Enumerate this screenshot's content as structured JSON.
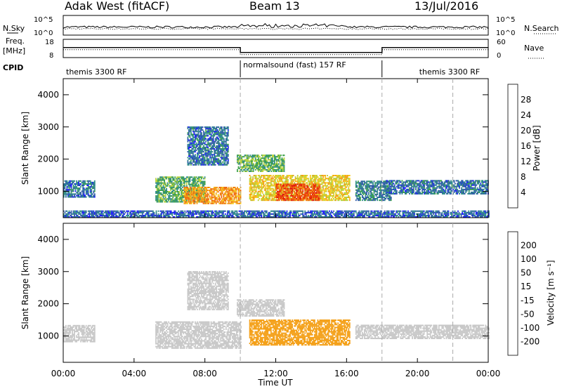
{
  "header": {
    "station": "Adak West (fitACF)",
    "beam": "Beam 13",
    "date": "13/Jul/2016"
  },
  "noise_panel": {
    "left_label": "N.Sky",
    "right_label": "N.Search",
    "tick_top": "10^5",
    "tick_bottom": "10^0"
  },
  "freq_panel": {
    "left_label_1": "Freq.",
    "left_label_2": "[MHz]",
    "right_label": "Nave",
    "left_ticks": [
      "18",
      "8"
    ],
    "right_ticks": [
      "60",
      "0"
    ]
  },
  "cpid": {
    "label": "CPID",
    "segments": [
      {
        "text": "themis 3300 RF",
        "start": 0,
        "end": 10
      },
      {
        "text": "normalsound (fast) 157 RF",
        "start": 10,
        "end": 18
      },
      {
        "text": "themis 3300 RF",
        "start": 18,
        "end": 24
      }
    ]
  },
  "axes": {
    "xlabel": "Time UT",
    "ylabel": "Slant Range [km]",
    "x_ticks": [
      "00:00",
      "04:00",
      "08:00",
      "12:00",
      "16:00",
      "20:00",
      "00:00"
    ],
    "y_ticks": [
      "1000",
      "2000",
      "3000",
      "4000"
    ]
  },
  "power_colorbar": {
    "label": "Power [dB]",
    "ticks": [
      "4",
      "8",
      "12",
      "16",
      "20",
      "24",
      "28"
    ],
    "colors": [
      "#1a1aff",
      "#2e5aa8",
      "#2e8a8a",
      "#3aa04a",
      "#b6d23a",
      "#f6cc1e",
      "#f39a18",
      "#ef6a10",
      "#ea3a0c",
      "#e01010"
    ]
  },
  "velocity_colorbar": {
    "label": "Velocity [m s⁻¹]",
    "ticks": [
      "200",
      "100",
      "50",
      "15",
      "-15",
      "-50",
      "-100",
      "-200"
    ],
    "colors": [
      "#2233cc",
      "#2e5aa8",
      "#2e8a8a",
      "#4ab04a",
      "#8ad24a",
      "#c8c8c8",
      "#f6cc1e",
      "#f4a018",
      "#ef6a10",
      "#ea3a0c",
      "#e01010"
    ]
  },
  "chart_data": {
    "type": "heatmap",
    "title": "Adak West (fitACF)  Beam 13  13/Jul/2016",
    "xlabel": "Time UT",
    "ylabel": "Slant Range [km]",
    "xlim": [
      0,
      24
    ],
    "ylim": [
      180,
      4500
    ],
    "grid": false,
    "mode_change_markers_hours": [
      10,
      18,
      22
    ],
    "frequency_mhz": [
      {
        "start": 0,
        "end": 10,
        "value": 13.5
      },
      {
        "start": 10,
        "end": 18,
        "value": 10.8
      },
      {
        "start": 18,
        "end": 24,
        "value": 13.5
      }
    ],
    "power_db_regions": [
      {
        "t_start": 0.0,
        "t_end": 1.8,
        "r_start": 800,
        "r_end": 1300,
        "power": 6
      },
      {
        "t_start": 5.2,
        "t_end": 8.0,
        "r_start": 650,
        "r_end": 1450,
        "power": 10
      },
      {
        "t_start": 6.8,
        "t_end": 10.0,
        "r_start": 600,
        "r_end": 1100,
        "power": 20
      },
      {
        "t_start": 7.0,
        "t_end": 9.3,
        "r_start": 1800,
        "r_end": 3000,
        "power": 6
      },
      {
        "t_start": 9.8,
        "t_end": 12.5,
        "r_start": 1600,
        "r_end": 2100,
        "power": 11
      },
      {
        "t_start": 10.5,
        "t_end": 16.2,
        "r_start": 700,
        "r_end": 1500,
        "power": 16
      },
      {
        "t_start": 12.0,
        "t_end": 14.5,
        "r_start": 700,
        "r_end": 1200,
        "power": 24
      },
      {
        "t_start": 16.5,
        "t_end": 18.5,
        "r_start": 700,
        "r_end": 1300,
        "power": 7
      },
      {
        "t_start": 18.2,
        "t_end": 24.0,
        "r_start": 900,
        "r_end": 1350,
        "power": 6
      },
      {
        "t_start": 0.0,
        "t_end": 24.0,
        "r_start": 180,
        "r_end": 400,
        "power": 5
      }
    ],
    "velocity_regions": [
      {
        "t_start": 0.0,
        "t_end": 1.8,
        "r_start": 800,
        "r_end": 1300,
        "velocity": 0
      },
      {
        "t_start": 5.2,
        "t_end": 10.0,
        "r_start": 600,
        "r_end": 1450,
        "velocity": 0
      },
      {
        "t_start": 7.0,
        "t_end": 9.3,
        "r_start": 1800,
        "r_end": 3000,
        "velocity": 0
      },
      {
        "t_start": 9.8,
        "t_end": 12.5,
        "r_start": 1600,
        "r_end": 2100,
        "velocity": 0
      },
      {
        "t_start": 10.5,
        "t_end": 16.2,
        "r_start": 700,
        "r_end": 1500,
        "velocity": -50
      },
      {
        "t_start": 16.5,
        "t_end": 24.0,
        "r_start": 900,
        "r_end": 1350,
        "velocity": 0
      }
    ]
  }
}
